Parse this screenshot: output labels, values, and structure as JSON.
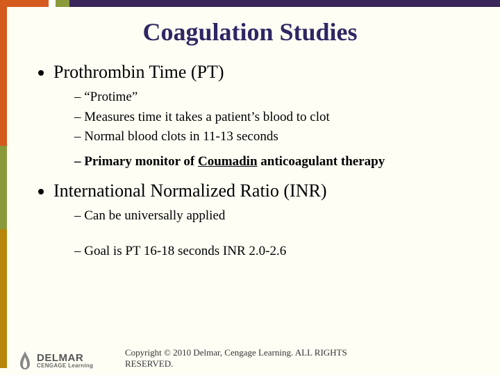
{
  "colors": {
    "background": "#fffef5",
    "title_color": "#2f2763",
    "bar_orange": "#d55a1e",
    "bar_green": "#8a9a3a",
    "bar_purple": "#3a2658",
    "bar_gold": "#b8860b",
    "text_color": "#000000"
  },
  "typography": {
    "title_fontsize": 36,
    "level1_fontsize": 26,
    "level2_fontsize": 19,
    "copyright_fontsize": 13,
    "font_family": "Times New Roman"
  },
  "title": "Coagulation Studies",
  "bullets": [
    {
      "text": "Prothrombin Time (PT)",
      "sub": [
        {
          "text": "“Protime”"
        },
        {
          "text": "Measures time it takes a patient’s blood to clot"
        },
        {
          "text": "Normal blood clots in 11-13 seconds"
        },
        {
          "html": "Primary monitor of <span class=\"u\">Coumadin</span> anticoagulant therapy",
          "bold": true
        }
      ]
    },
    {
      "text": "International Normalized Ratio (INR)",
      "sub": [
        {
          "text": "Can be universally applied"
        },
        {
          "text": "Goal is PT 16-18 seconds INR 2.0-2.6",
          "gap": true
        }
      ]
    }
  ],
  "footer": {
    "logo_primary": "DELMAR",
    "logo_secondary": "CENGAGE Learning",
    "copyright": "Copyright © 2010 Delmar, Cengage Learning. ALL RIGHTS RESERVED."
  }
}
